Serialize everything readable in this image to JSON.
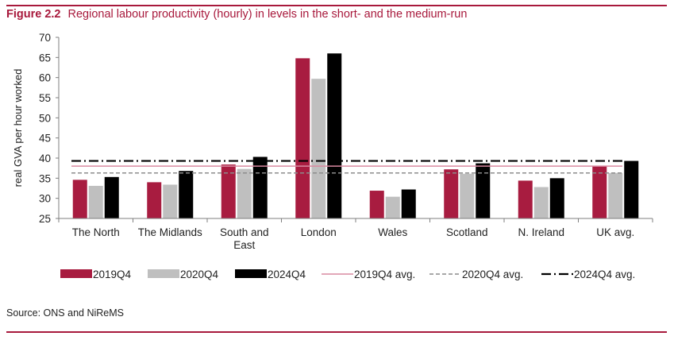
{
  "figure": {
    "label": "Figure 2.2",
    "title": "Regional labour productivity (hourly) in levels in the short- and the medium-run",
    "source": "Source: ONS and NiReMS"
  },
  "colors": {
    "accent": "#a8193c",
    "s2019": "#a81c40",
    "s2020": "#bfbfbf",
    "s2024": "#000000",
    "avg2019": "#d98aa0",
    "avg2020": "#8c8c8c",
    "avg2024": "#000000"
  },
  "chart_data": {
    "type": "bar",
    "ylabel": "real GVA per hour worked",
    "ylim": [
      25,
      70
    ],
    "yticks": [
      25,
      30,
      35,
      40,
      45,
      50,
      55,
      60,
      65,
      70
    ],
    "categories": [
      [
        "The North"
      ],
      [
        "The Midlands"
      ],
      [
        "South and",
        "East"
      ],
      [
        "London"
      ],
      [
        "Wales"
      ],
      [
        "Scotland"
      ],
      [
        "N. Ireland"
      ],
      [
        "UK avg."
      ]
    ],
    "series": [
      {
        "name": "2019Q4",
        "values": [
          34.6,
          34.0,
          38.4,
          64.8,
          31.9,
          37.2,
          34.4,
          38.0
        ]
      },
      {
        "name": "2020Q4",
        "values": [
          33.1,
          33.4,
          37.3,
          59.7,
          30.4,
          36.1,
          32.8,
          36.3
        ]
      },
      {
        "name": "2024Q4",
        "values": [
          35.3,
          36.8,
          40.3,
          66.0,
          32.2,
          38.7,
          35.0,
          39.3
        ]
      }
    ],
    "reference_lines": [
      {
        "name": "2019Q4 avg.",
        "value": 38.0,
        "style": "solid"
      },
      {
        "name": "2020Q4 avg.",
        "value": 36.3,
        "style": "dashed"
      },
      {
        "name": "2024Q4 avg.",
        "value": 39.3,
        "style": "dash-dot"
      }
    ],
    "legend_position": "bottom",
    "grid": false
  }
}
